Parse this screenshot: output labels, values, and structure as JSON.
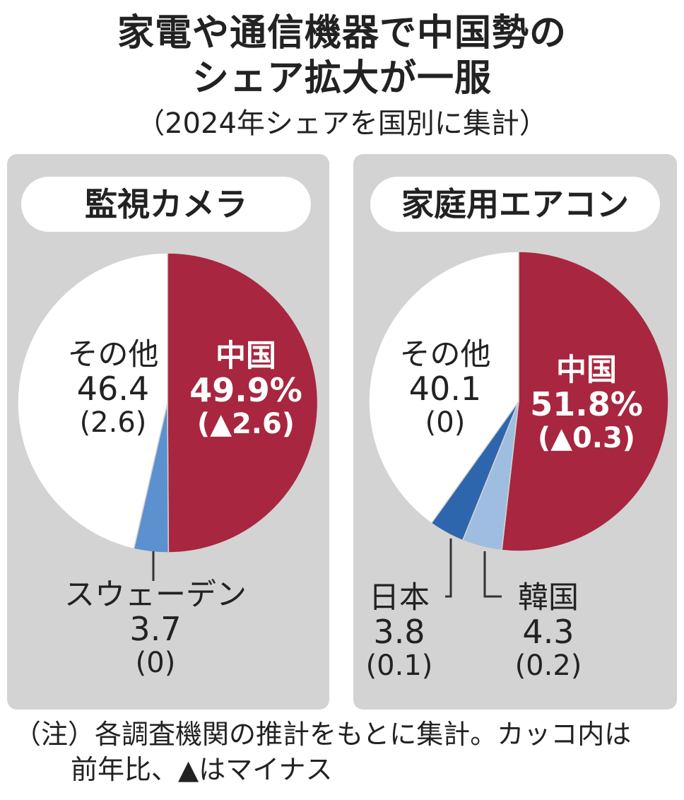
{
  "title_line1": "家電や通信機器で中国勢の",
  "title_line2": "シェア拡大が一服",
  "subtitle": "（2024年シェアを国別に集計）",
  "colors": {
    "panel_bg": "#d3d3d3",
    "china": "#a8263f",
    "japan": "#2e66ad",
    "korea": "#9fbde0",
    "sweden": "#5c91cf",
    "other": "#ffffff"
  },
  "chart_data": [
    {
      "type": "pie",
      "title": "監視カメラ",
      "unit": "%",
      "slices": [
        {
          "name": "中国",
          "value": 49.9,
          "change": "▲2.6",
          "value_text": "49.9%",
          "change_text": "(▲2.6)"
        },
        {
          "name": "スウェーデン",
          "value": 3.7,
          "change": "0",
          "value_text": "3.7",
          "change_text": "(0)"
        },
        {
          "name": "その他",
          "value": 46.4,
          "change": "2.6",
          "value_text": "46.4",
          "change_text": "(2.6)"
        }
      ]
    },
    {
      "type": "pie",
      "title": "家庭用エアコン",
      "unit": "%",
      "slices": [
        {
          "name": "中国",
          "value": 51.8,
          "change": "▲0.3",
          "value_text": "51.8%",
          "change_text": "(▲0.3)"
        },
        {
          "name": "韓国",
          "value": 4.3,
          "change": "0.2",
          "value_text": "4.3",
          "change_text": "(0.2)"
        },
        {
          "name": "日本",
          "value": 3.8,
          "change": "0.1",
          "value_text": "3.8",
          "change_text": "(0.1)"
        },
        {
          "name": "その他",
          "value": 40.1,
          "change": "0",
          "value_text": "40.1",
          "change_text": "(0)"
        }
      ]
    }
  ],
  "note_line1": "（注）各調査機関の推計をもとに集計。カッコ内は",
  "note_line2": "前年比、▲はマイナス"
}
